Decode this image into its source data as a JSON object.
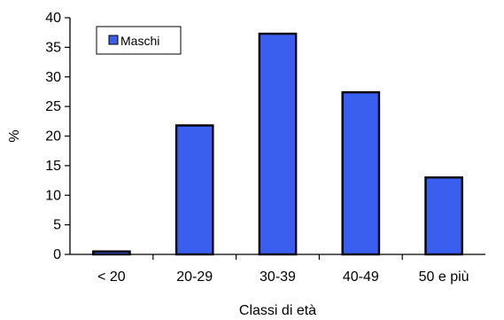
{
  "chart_data": {
    "type": "bar",
    "categories": [
      "< 20",
      "20-29",
      "30-39",
      "40-49",
      "50 e più"
    ],
    "series": [
      {
        "name": "Maschi",
        "values": [
          0.5,
          21.8,
          37.3,
          27.4,
          13.0
        ],
        "color": "#3a5fee"
      }
    ],
    "xlabel": "Classi di età",
    "ylabel": "%",
    "ylim": [
      0,
      40
    ],
    "yticks": [
      0,
      5,
      10,
      15,
      20,
      25,
      30,
      35,
      40
    ],
    "grid": false,
    "legend": "top-left"
  }
}
